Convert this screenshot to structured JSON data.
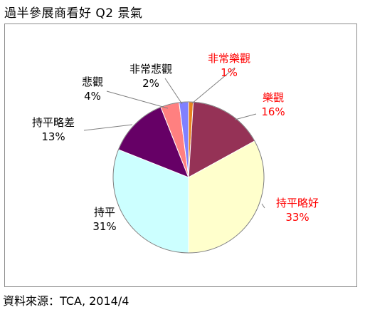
{
  "title": "過半參展商看好 Q2 景氣",
  "source": "資料來源：TCA, 2014/4",
  "chart_data": {
    "type": "pie",
    "title": "過半參展商看好 Q2 景氣",
    "start_angle_deg": 0,
    "direction": "clockwise",
    "slices": [
      {
        "label": "非常樂觀",
        "value": 1,
        "percent": "1%",
        "color": "#E8821E",
        "label_color": "#FF0000"
      },
      {
        "label": "樂觀",
        "value": 16,
        "percent": "16%",
        "color": "#953256",
        "label_color": "#FF0000"
      },
      {
        "label": "持平略好",
        "value": 33,
        "percent": "33%",
        "color": "#FFFFCC",
        "label_color": "#FF0000"
      },
      {
        "label": "持平",
        "value": 31,
        "percent": "31%",
        "color": "#CCFFFF",
        "label_color": "#000000"
      },
      {
        "label": "持平略差",
        "value": 13,
        "percent": "13%",
        "color": "#660066",
        "label_color": "#000000"
      },
      {
        "label": "悲觀",
        "value": 4,
        "percent": "4%",
        "color": "#FF8080",
        "label_color": "#000000"
      },
      {
        "label": "非常悲觀",
        "value": 2,
        "percent": "2%",
        "color": "#8080FF",
        "label_color": "#000000"
      }
    ]
  }
}
